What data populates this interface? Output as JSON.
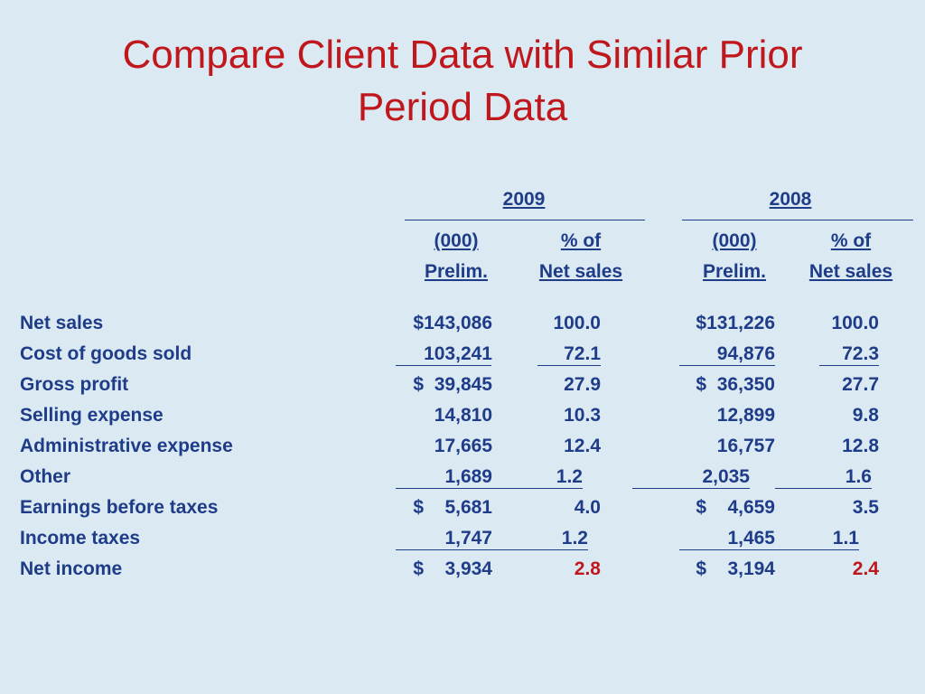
{
  "title": {
    "line1": "Compare Client Data with Similar Prior",
    "line2": "Period Data"
  },
  "years": {
    "y2009": "2009",
    "y2008": "2008"
  },
  "columns": {
    "c1_line1": "(000)",
    "c1_line2": "Prelim.",
    "c2_line1": "% of",
    "c2_line2": "Net sales",
    "c3_line1": "(000)",
    "c3_line2": "Prelim.",
    "c4_line1": "% of",
    "c4_line2": "Net sales"
  },
  "rows": [
    {
      "label": "Net sales",
      "v2009": "$143,086",
      "p2009": "100.0",
      "v2008": "$131,226",
      "p2008": "100.0"
    },
    {
      "label": "Cost of goods sold",
      "v2009": "103,241",
      "p2009": "72.1",
      "v2008": "94,876",
      "p2008": "72.3"
    },
    {
      "label": "Gross profit",
      "v2009": "$  39,845",
      "p2009": "27.9",
      "v2008": "$  36,350",
      "p2008": "27.7"
    },
    {
      "label": "Selling expense",
      "v2009": "14,810",
      "p2009": "10.3",
      "v2008": "12,899",
      "p2008": "9.8"
    },
    {
      "label": "Administrative expense",
      "v2009": "17,665",
      "p2009": "12.4",
      "v2008": "16,757",
      "p2008": "12.8"
    },
    {
      "label": "Other",
      "v2009": "1,689",
      "p2009": "1.2",
      "v2008": "2,035",
      "p2008": "1.6"
    },
    {
      "label": "Earnings before taxes",
      "v2009": "$    5,681",
      "p2009": "4.0",
      "v2008": "$    4,659",
      "p2008": "3.5"
    },
    {
      "label": "Income taxes",
      "v2009": "1,747",
      "p2009": "1.2",
      "v2008": "1,465",
      "p2008": "1.1"
    },
    {
      "label": "Net income",
      "v2009": "$    3,934",
      "p2009": "2.8",
      "v2008": "$    3,194",
      "p2008": "2.4"
    }
  ],
  "colors": {
    "title": "#c0171d",
    "text": "#1f3c88",
    "highlight": "#c0171d",
    "background": "#dbe9f3"
  }
}
